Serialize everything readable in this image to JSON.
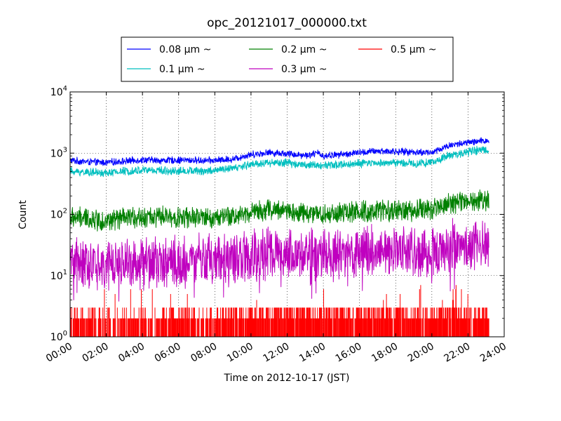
{
  "chart_data": {
    "type": "line",
    "title": "opc_20121017_000000.txt",
    "xlabel": "Time on 2012-10-17 (JST)",
    "ylabel": "Count",
    "xlim": [
      "00:00",
      "24:00"
    ],
    "x_ticks": [
      "00:00",
      "02:00",
      "04:00",
      "06:00",
      "08:00",
      "10:00",
      "12:00",
      "14:00",
      "16:00",
      "18:00",
      "20:00",
      "22:00",
      "24:00"
    ],
    "ylim": [
      1,
      10000
    ],
    "yscale": "log",
    "y_ticks": [
      {
        "base": "10",
        "exp": "0"
      },
      {
        "base": "10",
        "exp": "1"
      },
      {
        "base": "10",
        "exp": "2"
      },
      {
        "base": "10",
        "exp": "3"
      },
      {
        "base": "10",
        "exp": "4"
      }
    ],
    "grid": true,
    "legend_position": "top-center, above plot",
    "series": [
      {
        "name": "0.08 μm ~",
        "color": "#0000ff",
        "x_hours": [
          0,
          1,
          2,
          3,
          4,
          5,
          6,
          7,
          8,
          9,
          10,
          11,
          12,
          13,
          13.7,
          14,
          15,
          16,
          17,
          18,
          19,
          20,
          21,
          22,
          23
        ],
        "values": [
          760,
          720,
          700,
          740,
          780,
          760,
          770,
          760,
          760,
          800,
          950,
          1020,
          980,
          920,
          1000,
          900,
          950,
          1020,
          1080,
          1060,
          1040,
          1020,
          1350,
          1480,
          1600
        ]
      },
      {
        "name": "0.1 μm ~",
        "color": "#00bfbf",
        "x_hours": [
          0,
          1,
          2,
          3,
          4,
          5,
          6,
          7,
          8,
          9,
          10,
          11,
          12,
          13,
          14,
          15,
          16,
          17,
          18,
          19,
          20,
          21,
          22,
          23
        ],
        "values": [
          500,
          490,
          470,
          510,
          530,
          520,
          510,
          510,
          520,
          560,
          660,
          700,
          690,
          650,
          620,
          650,
          670,
          690,
          700,
          680,
          700,
          920,
          1050,
          1150
        ]
      },
      {
        "name": "0.2 μm ~",
        "color": "#008000",
        "x_hours": [
          0,
          1,
          2,
          3,
          4,
          5,
          6,
          7,
          8,
          9,
          10,
          11,
          12,
          13,
          14,
          15,
          16,
          17,
          18,
          19,
          20,
          21,
          22,
          23
        ],
        "values": [
          90,
          85,
          78,
          85,
          92,
          90,
          88,
          87,
          88,
          92,
          110,
          118,
          112,
          105,
          100,
          105,
          110,
          112,
          115,
          115,
          125,
          150,
          165,
          175
        ]
      },
      {
        "name": "0.3 μm ~",
        "color": "#bf00bf",
        "x_hours": [
          0,
          1,
          2,
          3,
          4,
          5,
          6,
          7,
          8,
          9,
          10,
          11,
          12,
          13,
          14,
          15,
          16,
          17,
          18,
          19,
          20,
          21,
          22,
          23
        ],
        "values": [
          15,
          15,
          14,
          15,
          16,
          16,
          16,
          17,
          17,
          18,
          20,
          22,
          22,
          21,
          21,
          22,
          23,
          24,
          25,
          25,
          26,
          30,
          32,
          33
        ]
      },
      {
        "name": "0.5 μm ~",
        "color": "#ff0000",
        "x_hours": [
          0,
          1,
          2,
          3,
          4,
          5,
          6,
          7,
          8,
          9,
          10,
          11,
          12,
          13,
          14,
          15,
          16,
          17,
          18,
          19,
          20,
          21,
          22,
          23
        ],
        "values": [
          1.5,
          1.5,
          1.5,
          1.5,
          1.6,
          1.6,
          1.7,
          1.7,
          1.8,
          1.8,
          2,
          2,
          2,
          2,
          2,
          2,
          2,
          2,
          2,
          2,
          2,
          2,
          2,
          2
        ]
      }
    ]
  }
}
